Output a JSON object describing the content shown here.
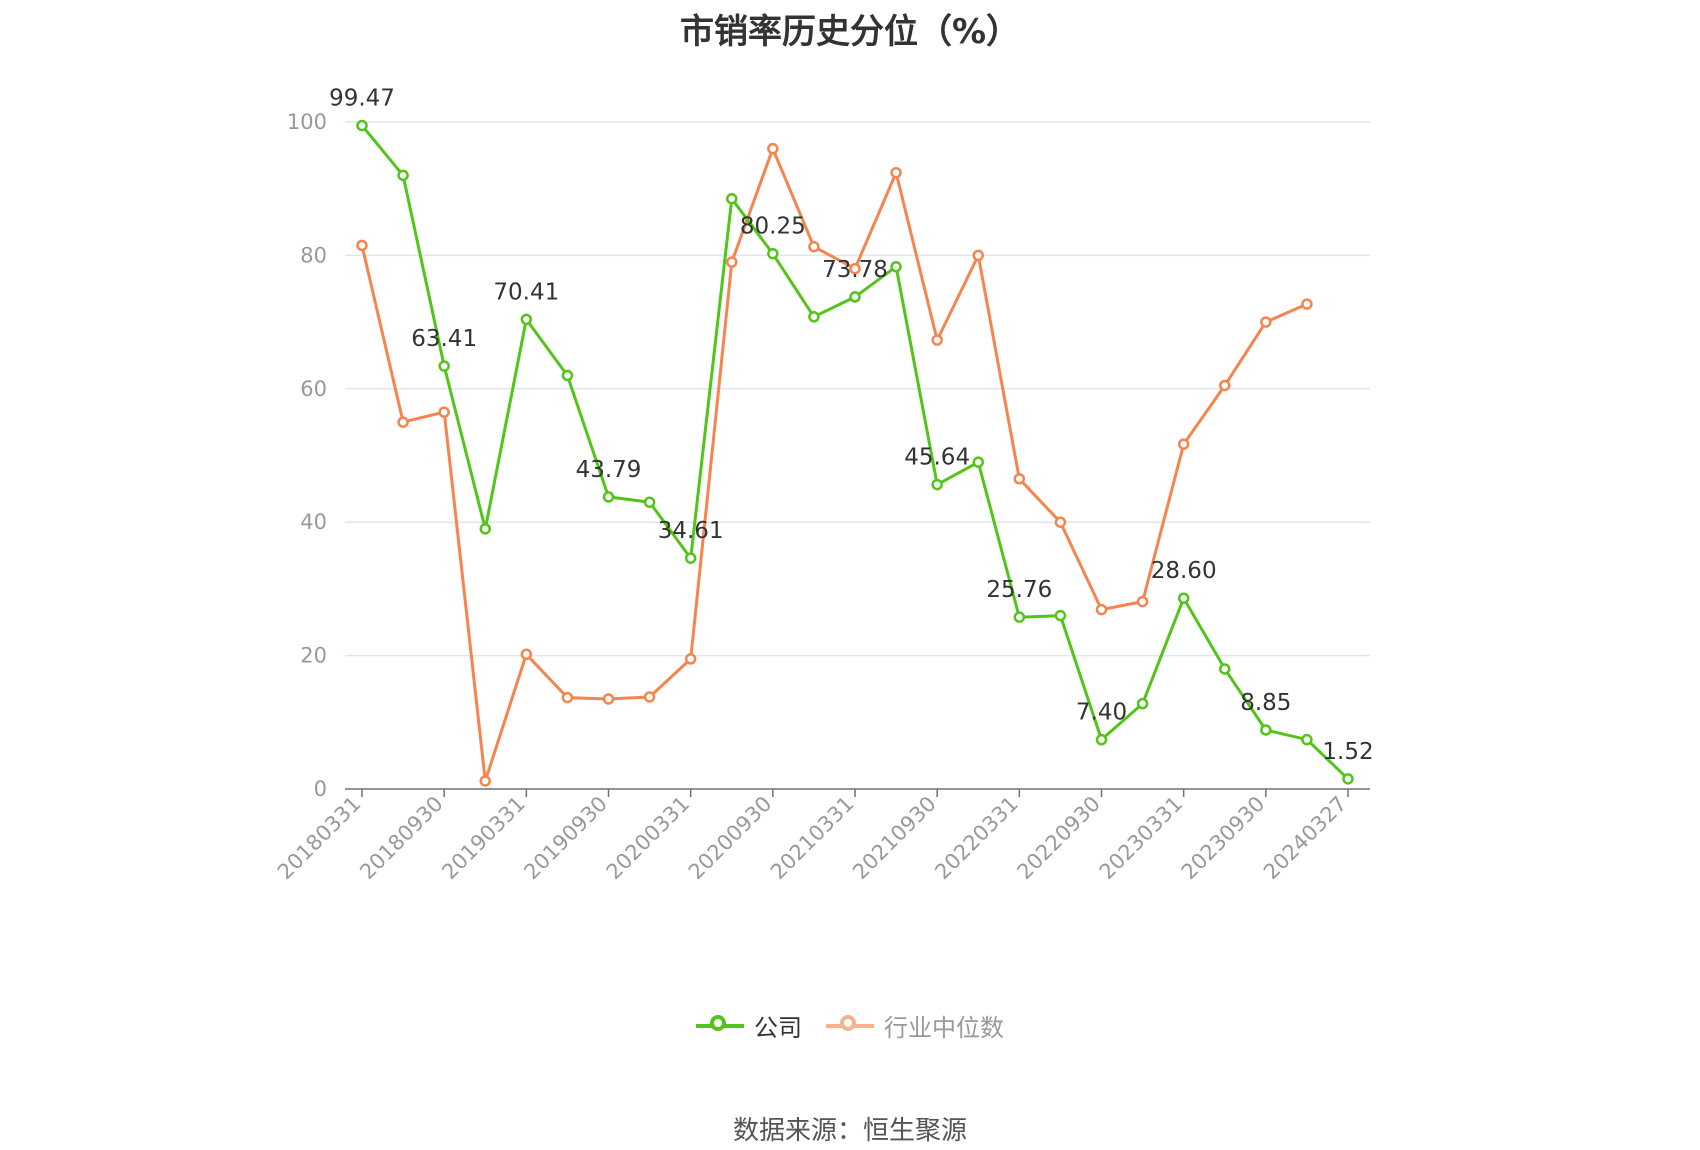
{
  "chart_data": {
    "type": "line",
    "title": "市销率历史分位（%）",
    "ylim": [
      0,
      100
    ],
    "yticks": [
      0,
      20,
      40,
      60,
      80,
      100
    ],
    "grid": true,
    "legend_position": "bottom",
    "x": [
      "20180331",
      "20180630",
      "20180930",
      "20181231",
      "20190331",
      "20190630",
      "20190930",
      "20191231",
      "20200331",
      "20200630",
      "20200930",
      "20201231",
      "20210331",
      "20210630",
      "20210930",
      "20211231",
      "20220331",
      "20220630",
      "20220930",
      "20221231",
      "20230331",
      "20230630",
      "20230930",
      "20231231",
      "20240327"
    ],
    "xtick_labels": [
      "20180331",
      "20180930",
      "20190331",
      "20190930",
      "20200331",
      "20200930",
      "20210331",
      "20210930",
      "20220331",
      "20220930",
      "20230331",
      "20230930",
      "20240327"
    ],
    "series": [
      {
        "name": "公司",
        "color": "#52c41a",
        "values": [
          99.47,
          92.0,
          63.41,
          39.0,
          70.41,
          62.0,
          43.79,
          43.0,
          34.61,
          88.5,
          80.25,
          70.8,
          73.78,
          78.3,
          45.64,
          49.0,
          25.76,
          26.0,
          7.4,
          12.8,
          28.6,
          18.0,
          8.85,
          7.4,
          1.52
        ],
        "labeled": [
          {
            "x": "20180331",
            "text": "99.47"
          },
          {
            "x": "20180930",
            "text": "63.41"
          },
          {
            "x": "20190331",
            "text": "70.41"
          },
          {
            "x": "20190930",
            "text": "43.79"
          },
          {
            "x": "20200331",
            "text": "34.61"
          },
          {
            "x": "20200930",
            "text": "80.25"
          },
          {
            "x": "20210331",
            "text": "73.78"
          },
          {
            "x": "20210930",
            "text": "45.64"
          },
          {
            "x": "20220331",
            "text": "25.76"
          },
          {
            "x": "20220930",
            "text": "7.40"
          },
          {
            "x": "20230331",
            "text": "28.60"
          },
          {
            "x": "20230930",
            "text": "8.85"
          },
          {
            "x": "20240327",
            "text": "1.52"
          }
        ]
      },
      {
        "name": "行业中位数",
        "color": "#f5844e",
        "values": [
          81.5,
          55.0,
          56.5,
          1.2,
          20.2,
          13.7,
          13.5,
          13.8,
          19.5,
          79.0,
          96.0,
          81.3,
          78.0,
          92.4,
          67.3,
          80.0,
          46.5,
          40.0,
          26.9,
          28.1,
          51.7,
          60.5,
          70.0,
          72.7,
          null
        ]
      }
    ]
  },
  "legend": {
    "company": "公司",
    "industry": "行业中位数"
  },
  "source": "数据来源：恒生聚源"
}
